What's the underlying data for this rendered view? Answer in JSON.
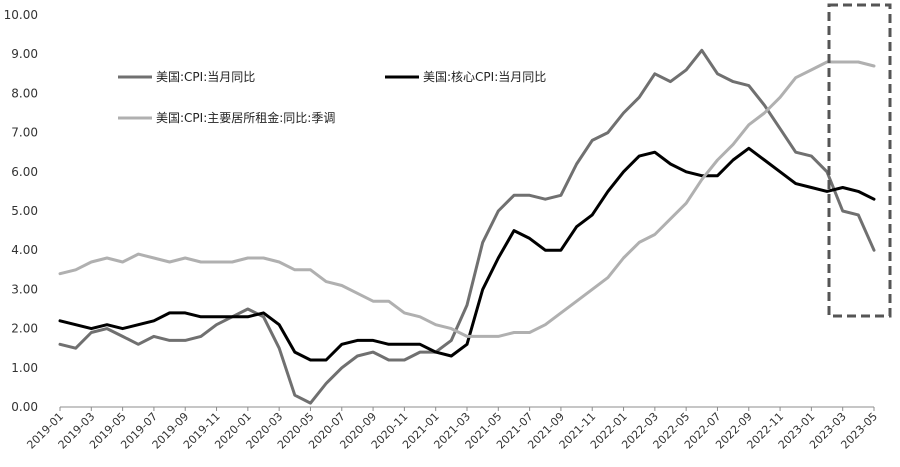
{
  "chart_data": {
    "type": "line",
    "title": "",
    "xlabel": "",
    "ylabel": "",
    "ylim": [
      0,
      10
    ],
    "yticks": [
      "0.00",
      "1.00",
      "2.00",
      "3.00",
      "4.00",
      "5.00",
      "6.00",
      "7.00",
      "8.00",
      "9.00",
      "10.00"
    ],
    "x": [
      "2019-01",
      "2019-02",
      "2019-03",
      "2019-04",
      "2019-05",
      "2019-06",
      "2019-07",
      "2019-08",
      "2019-09",
      "2019-10",
      "2019-11",
      "2019-12",
      "2020-01",
      "2020-02",
      "2020-03",
      "2020-04",
      "2020-05",
      "2020-06",
      "2020-07",
      "2020-08",
      "2020-09",
      "2020-10",
      "2020-11",
      "2020-12",
      "2021-01",
      "2021-02",
      "2021-03",
      "2021-04",
      "2021-05",
      "2021-06",
      "2021-07",
      "2021-08",
      "2021-09",
      "2021-10",
      "2021-11",
      "2021-12",
      "2022-01",
      "2022-02",
      "2022-03",
      "2022-04",
      "2022-05",
      "2022-06",
      "2022-07",
      "2022-08",
      "2022-09",
      "2022-10",
      "2022-11",
      "2022-12",
      "2023-01",
      "2023-02",
      "2023-03",
      "2023-04",
      "2023-05"
    ],
    "xtick_labels": [
      "2019-01",
      "2019-03",
      "2019-05",
      "2019-07",
      "2019-09",
      "2019-11",
      "2020-01",
      "2020-03",
      "2020-05",
      "2020-07",
      "2020-09",
      "2020-11",
      "2021-01",
      "2021-03",
      "2021-05",
      "2021-07",
      "2021-09",
      "2021-11",
      "2022-01",
      "2022-03",
      "2022-05",
      "2022-07",
      "2022-09",
      "2022-11",
      "2023-01",
      "2023-03",
      "2023-05"
    ],
    "grid": false,
    "legend_position": "top-left",
    "series": [
      {
        "name": "美国:CPI:当月同比",
        "color": "#707070",
        "width": 3,
        "values": [
          1.6,
          1.5,
          1.9,
          2.0,
          1.8,
          1.6,
          1.8,
          1.7,
          1.7,
          1.8,
          2.1,
          2.3,
          2.5,
          2.3,
          1.5,
          0.3,
          0.1,
          0.6,
          1.0,
          1.3,
          1.4,
          1.2,
          1.2,
          1.4,
          1.4,
          1.7,
          2.6,
          4.2,
          5.0,
          5.4,
          5.4,
          5.3,
          5.4,
          6.2,
          6.8,
          7.0,
          7.5,
          7.9,
          8.5,
          8.3,
          8.6,
          9.1,
          8.5,
          8.3,
          8.2,
          7.7,
          7.1,
          6.5,
          6.4,
          6.0,
          5.0,
          4.9,
          4.0
        ]
      },
      {
        "name": "美国:核心CPI:当月同比",
        "color": "#000000",
        "width": 3,
        "values": [
          2.2,
          2.1,
          2.0,
          2.1,
          2.0,
          2.1,
          2.2,
          2.4,
          2.4,
          2.3,
          2.3,
          2.3,
          2.3,
          2.4,
          2.1,
          1.4,
          1.2,
          1.2,
          1.6,
          1.7,
          1.7,
          1.6,
          1.6,
          1.6,
          1.4,
          1.3,
          1.6,
          3.0,
          3.8,
          4.5,
          4.3,
          4.0,
          4.0,
          4.6,
          4.9,
          5.5,
          6.0,
          6.4,
          6.5,
          6.2,
          6.0,
          5.9,
          5.9,
          6.3,
          6.6,
          6.3,
          6.0,
          5.7,
          5.6,
          5.5,
          5.6,
          5.5,
          5.3
        ]
      },
      {
        "name": "美国:CPI:主要居所租金:同比:季调",
        "color": "#b0b0b0",
        "width": 3,
        "values": [
          3.4,
          3.5,
          3.7,
          3.8,
          3.7,
          3.9,
          3.8,
          3.7,
          3.8,
          3.7,
          3.7,
          3.7,
          3.8,
          3.8,
          3.7,
          3.5,
          3.5,
          3.2,
          3.1,
          2.9,
          2.7,
          2.7,
          2.4,
          2.3,
          2.1,
          2.0,
          1.8,
          1.8,
          1.8,
          1.9,
          1.9,
          2.1,
          2.4,
          2.7,
          3.0,
          3.3,
          3.8,
          4.2,
          4.4,
          4.8,
          5.2,
          5.8,
          6.3,
          6.7,
          7.2,
          7.5,
          7.9,
          8.4,
          8.6,
          8.8,
          8.8,
          8.8,
          8.7
        ]
      }
    ]
  }
}
